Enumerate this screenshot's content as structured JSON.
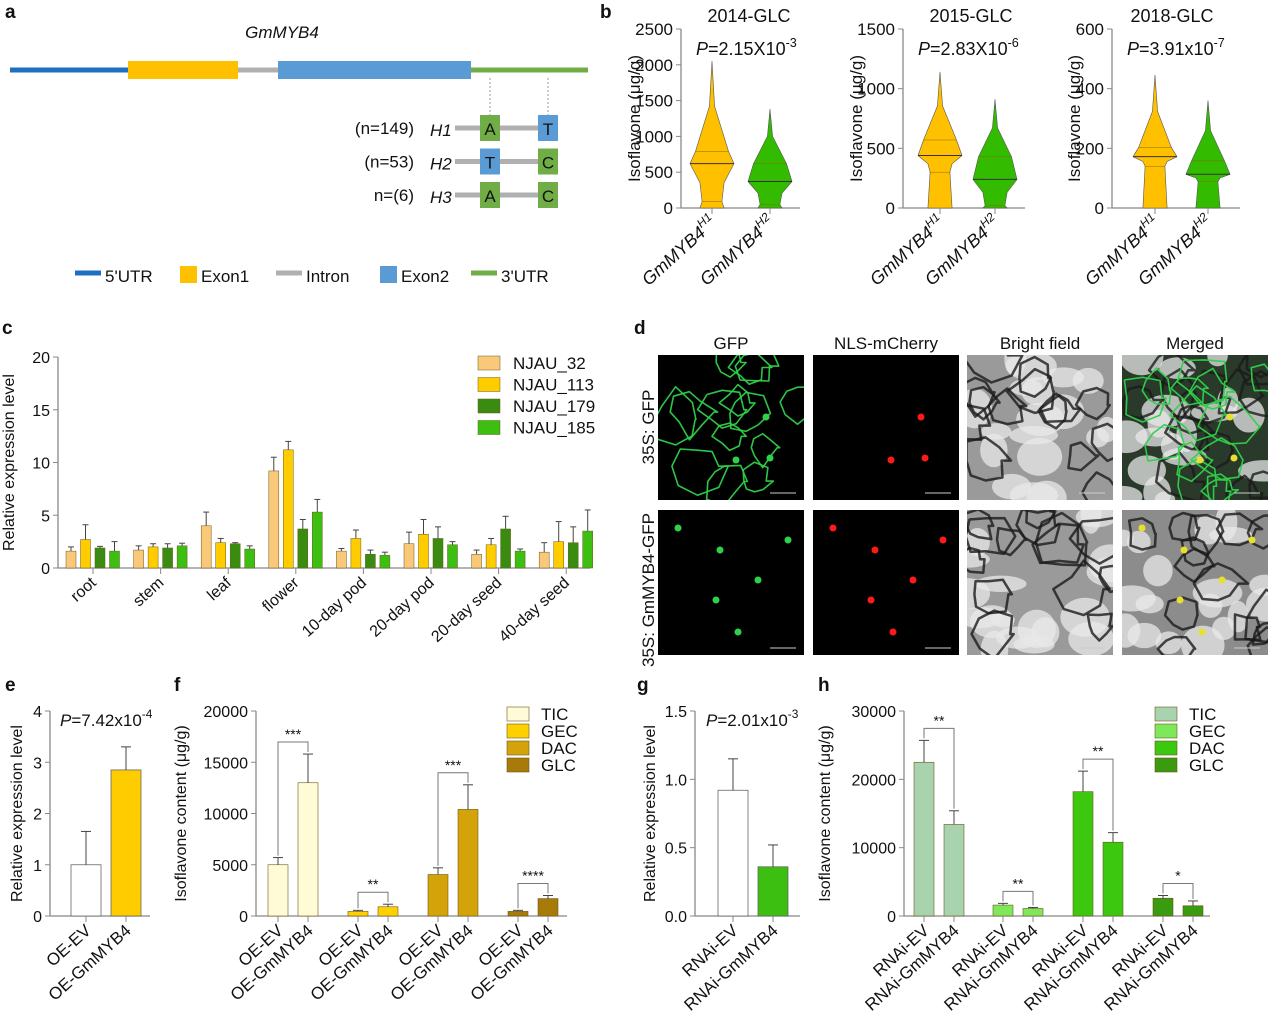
{
  "panels": {
    "a": {
      "letter": "a",
      "gene_title": "GmMYB4",
      "haplotypes": [
        {
          "count": "(n=149)",
          "name": "H1",
          "snp1": "A",
          "snp2": "T"
        },
        {
          "count": "(n=53)",
          "name": "H2",
          "snp1": "T",
          "snp2": "C"
        },
        {
          "count": "n=(6)",
          "name": "H3",
          "snp1": "A",
          "snp2": "C"
        }
      ],
      "allele_colors": {
        "A": "#70ad47",
        "C": "#70ad47",
        "T": "#5b9bd5"
      },
      "legend": [
        {
          "label": "5'UTR",
          "color": "#1f6fc0",
          "shape": "line"
        },
        {
          "label": "Exon1",
          "color": "#ffc000",
          "shape": "box"
        },
        {
          "label": "Intron",
          "color": "#b0b0b0",
          "shape": "line"
        },
        {
          "label": "Exon2",
          "color": "#5b9bd5",
          "shape": "box"
        },
        {
          "label": "3'UTR",
          "color": "#70ad47",
          "shape": "line"
        }
      ]
    },
    "b": {
      "letter": "b"
    },
    "c": {
      "letter": "c"
    },
    "d": {
      "letter": "d",
      "columns": [
        "GFP",
        "NLS-mCherry",
        "Bright field",
        "Merged"
      ],
      "rows": [
        "35S: GFP",
        "35S: GmMYB4-GFP"
      ]
    },
    "e": {
      "letter": "e"
    },
    "f": {
      "letter": "f"
    },
    "g": {
      "letter": "g"
    },
    "h": {
      "letter": "h"
    }
  },
  "chart_data": [
    {
      "type": "violin",
      "title": "2014-GLC",
      "annotation": {
        "prefix": "P",
        "value": "=2.15X10",
        "exp": "-3"
      },
      "ylabel": "Isoflavone (μg/g)",
      "ylim": [
        0,
        2500
      ],
      "yticks": [
        "0",
        "500",
        "1000",
        "1500",
        "2000",
        "2500"
      ],
      "categories": [
        {
          "base": "GmMYB4",
          "sup": "H1"
        },
        {
          "base": "GmMYB4",
          "sup": "H2"
        }
      ],
      "series": [
        {
          "min": 0,
          "q1": 90,
          "median": 620,
          "q3": 790,
          "max": 2050,
          "color": "#ffc000"
        },
        {
          "min": 0,
          "q1": 50,
          "median": 370,
          "q3": 620,
          "max": 1380,
          "color": "#33bb00"
        }
      ]
    },
    {
      "type": "violin",
      "title": "2015-GLC",
      "annotation": {
        "prefix": "P",
        "value": "=2.83X10",
        "exp": "-6"
      },
      "ylabel": "Isoflavone (μg/g)",
      "ylim": [
        0,
        1500
      ],
      "yticks": [
        "0",
        "500",
        "1000",
        "1500"
      ],
      "categories": [
        {
          "base": "GmMYB4",
          "sup": "H1"
        },
        {
          "base": "GmMYB4",
          "sup": "H2"
        }
      ],
      "series": [
        {
          "min": 0,
          "q1": 300,
          "median": 440,
          "q3": 570,
          "max": 1140,
          "color": "#ffc000"
        },
        {
          "min": 0,
          "q1": 20,
          "median": 240,
          "q3": 430,
          "max": 910,
          "color": "#33bb00"
        }
      ]
    },
    {
      "type": "violin",
      "title": "2018-GLC",
      "annotation": {
        "prefix": "P",
        "value": "=3.91x10",
        "exp": "-7"
      },
      "ylabel": "Isoflavone (μg/g)",
      "ylim": [
        0,
        600
      ],
      "yticks": [
        "0",
        "200",
        "400",
        "600"
      ],
      "categories": [
        {
          "base": "GmMYB4",
          "sup": "H1"
        },
        {
          "base": "GmMYB4",
          "sup": "H2"
        }
      ],
      "series": [
        {
          "min": 0,
          "q1": 140,
          "median": 172,
          "q3": 202,
          "max": 445,
          "color": "#ffc000"
        },
        {
          "min": 0,
          "q1": 88,
          "median": 113,
          "q3": 158,
          "max": 360,
          "color": "#33bb00"
        }
      ]
    },
    {
      "type": "bar",
      "ylabel": "Relative expression level",
      "ylim": [
        0,
        20
      ],
      "yticks": [
        "0",
        "5",
        "10",
        "15",
        "20"
      ],
      "categories": [
        "root",
        "stem",
        "leaf",
        "flower",
        "10-day pod",
        "20-day pod",
        "20-day seed",
        "40-day seed"
      ],
      "legend_position": "top-right",
      "series": [
        {
          "name": "NJAU_32",
          "color": "#f9c878",
          "values": [
            1.6,
            1.7,
            4.0,
            9.2,
            1.6,
            2.3,
            1.3,
            1.5
          ],
          "errors": [
            0.4,
            0.4,
            1.3,
            1.3,
            0.25,
            1.1,
            0.4,
            0.9
          ]
        },
        {
          "name": "NJAU_113",
          "color": "#ffcc00",
          "values": [
            2.7,
            2.0,
            2.4,
            11.2,
            2.8,
            3.2,
            2.2,
            2.5
          ],
          "errors": [
            1.4,
            0.3,
            0.4,
            0.8,
            0.8,
            1.4,
            0.6,
            1.9
          ]
        },
        {
          "name": "NJAU_179",
          "color": "#3a8c10",
          "values": [
            1.9,
            1.9,
            2.3,
            3.7,
            1.3,
            2.8,
            3.7,
            2.4
          ],
          "errors": [
            0.15,
            0.4,
            0.1,
            0.9,
            0.4,
            1.1,
            1.2,
            1.5
          ]
        },
        {
          "name": "NJAU_185",
          "color": "#3cbf10",
          "values": [
            1.6,
            2.1,
            1.8,
            5.3,
            1.2,
            2.2,
            1.6,
            3.5
          ],
          "errors": [
            0.9,
            0.25,
            0.3,
            1.2,
            0.3,
            0.3,
            0.2,
            2.0
          ]
        }
      ]
    },
    {
      "type": "bar",
      "annotation": {
        "prefix": "P",
        "value": "=7.42x10",
        "exp": "-4"
      },
      "ylabel": "Relative expression level",
      "ylim": [
        0,
        4
      ],
      "yticks": [
        "0",
        "1",
        "2",
        "3",
        "4"
      ],
      "categories": [
        "OE-EV",
        "OE-GmMYB4"
      ],
      "values": [
        1.0,
        2.85
      ],
      "errors": [
        0.65,
        0.45
      ],
      "colors": [
        "#ffffff",
        "#ffcc00"
      ]
    },
    {
      "type": "bar",
      "ylabel": "Isoflavone content (μg/g)",
      "ylim": [
        0,
        20000
      ],
      "yticks": [
        "0",
        "5000",
        "10000",
        "15000",
        "20000"
      ],
      "categories": [
        "OE-EV",
        "OE-GmMYB4"
      ],
      "legend_position": "top-right",
      "groups": [
        {
          "name": "TIC",
          "color": "#fffbd6",
          "values": [
            5000,
            13000
          ],
          "errors": [
            700,
            2800
          ],
          "significance": "***"
        },
        {
          "name": "GEC",
          "color": "#ffd000",
          "values": [
            450,
            900
          ],
          "errors": [
            100,
            250
          ],
          "significance": "**"
        },
        {
          "name": "DAC",
          "color": "#d4a30a",
          "values": [
            4050,
            10400
          ],
          "errors": [
            650,
            2400
          ],
          "significance": "***"
        },
        {
          "name": "GLC",
          "color": "#a87a0a",
          "values": [
            450,
            1700
          ],
          "errors": [
            100,
            300
          ],
          "significance": "****"
        }
      ]
    },
    {
      "type": "bar",
      "annotation": {
        "prefix": "P",
        "value": "=2.01x10",
        "exp": "-3"
      },
      "ylabel": "Relative expression level",
      "ylim": [
        0,
        1.5
      ],
      "yticks": [
        "0.0",
        "0.5",
        "1.0",
        "1.5"
      ],
      "categories": [
        "RNAi-EV",
        "RNAi-GmMYB4"
      ],
      "values": [
        0.92,
        0.36
      ],
      "errors": [
        0.23,
        0.16
      ],
      "colors": [
        "#ffffff",
        "#3cbf10"
      ]
    },
    {
      "type": "bar",
      "ylabel": "Isoflavone content (μg/g)",
      "ylim": [
        0,
        30000
      ],
      "yticks": [
        "0",
        "10000",
        "20000",
        "30000"
      ],
      "categories": [
        "RNAi-EV",
        "RNAi-GmMYB4"
      ],
      "legend_position": "top-right",
      "groups": [
        {
          "name": "TIC",
          "color": "#a9d3ae",
          "values": [
            22500,
            13400
          ],
          "errors": [
            3200,
            2000
          ],
          "significance": "**"
        },
        {
          "name": "GEC",
          "color": "#7ee85a",
          "values": [
            1600,
            1100
          ],
          "errors": [
            250,
            150
          ],
          "significance": "**"
        },
        {
          "name": "DAC",
          "color": "#3cc80f",
          "values": [
            18200,
            10800
          ],
          "errors": [
            3000,
            1400
          ],
          "significance": "**"
        },
        {
          "name": "GLC",
          "color": "#3a9a10",
          "values": [
            2600,
            1500
          ],
          "errors": [
            400,
            700
          ],
          "significance": "*"
        }
      ]
    }
  ]
}
